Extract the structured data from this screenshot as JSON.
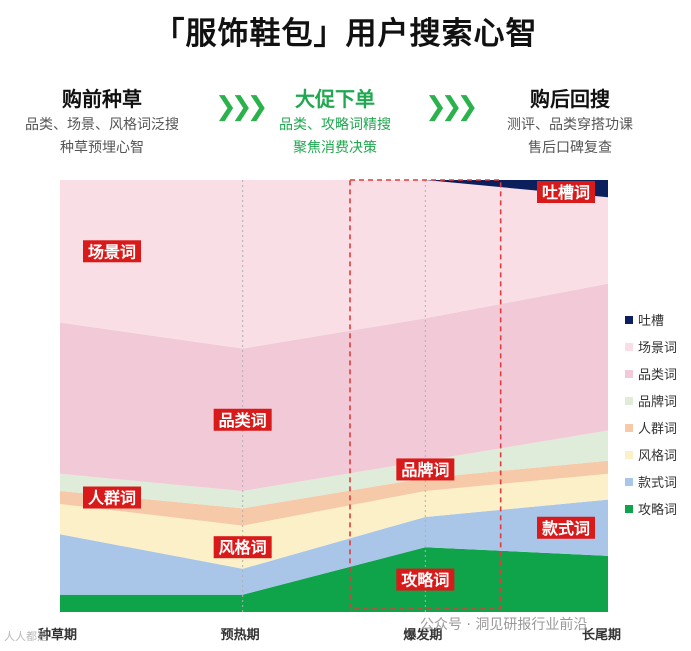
{
  "title": "「服饰鞋包」用户搜索心智",
  "stages": [
    {
      "title": "购前种草",
      "desc1": "品类、场景、风格词泛搜",
      "desc2": "种草预埋心智"
    },
    {
      "title": "大促下单",
      "desc1": "品类、攻略词精搜",
      "desc2": "聚焦消费决策"
    },
    {
      "title": "购后回搜",
      "desc1": "测评、品类穿搭功课",
      "desc2": "售后口碑复查"
    }
  ],
  "arrow_text": "❯❯❯",
  "watermark": "公众号 · 洞见研报行业前沿",
  "watermark_left": "人人都是",
  "colors": {
    "active_stage": "#1fa84f",
    "arrow": "#2bb24c",
    "label_bg": "#d91a1a",
    "highlight_border": "#e23b3b"
  },
  "chart_data": {
    "type": "area",
    "stacked": true,
    "normalized": true,
    "x": [
      "种草期",
      "预热期",
      "爆发期",
      "长尾期"
    ],
    "ylim": [
      0,
      100
    ],
    "highlight": "爆发期",
    "legend_position": "right",
    "series": [
      {
        "name": "攻略词",
        "color": "#0fa34a",
        "values": [
          4,
          4,
          15,
          13
        ]
      },
      {
        "name": "款式词",
        "color": "#a9c6e8",
        "values": [
          14,
          6,
          7,
          13
        ]
      },
      {
        "name": "风格词",
        "color": "#fbf0c8",
        "values": [
          7,
          10,
          6,
          6
        ]
      },
      {
        "name": "人群词",
        "color": "#f6c9a8",
        "values": [
          3,
          4,
          3,
          3
        ]
      },
      {
        "name": "品牌词",
        "color": "#deecd9",
        "values": [
          4,
          4,
          4,
          7
        ]
      },
      {
        "name": "品类词",
        "color": "#f2cad7",
        "values": [
          35,
          33,
          33,
          34
        ]
      },
      {
        "name": "场景词",
        "color": "#f9dfe5",
        "values": [
          33,
          39,
          32,
          20
        ]
      },
      {
        "name": "吐槽",
        "color": "#0a1f5c",
        "values": [
          0,
          0,
          0,
          4
        ]
      }
    ],
    "legend": [
      "吐槽",
      "场景词",
      "品类词",
      "品牌词",
      "人群词",
      "风格词",
      "款式词",
      "攻略词"
    ],
    "annotations": [
      {
        "text": "场景词",
        "x": "种草期",
        "series": "场景词"
      },
      {
        "text": "品类词",
        "x": "预热期",
        "series": "品类词"
      },
      {
        "text": "人群词",
        "x": "种草期",
        "series": "人群词"
      },
      {
        "text": "风格词",
        "x": "预热期",
        "series": "风格词"
      },
      {
        "text": "品牌词",
        "x": "爆发期",
        "series": "品牌词"
      },
      {
        "text": "攻略词",
        "x": "爆发期",
        "series": "攻略词"
      },
      {
        "text": "款式词",
        "x": "长尾期",
        "series": "款式词"
      },
      {
        "text": "吐槽词",
        "x": "长尾期",
        "series": "吐槽"
      }
    ]
  }
}
